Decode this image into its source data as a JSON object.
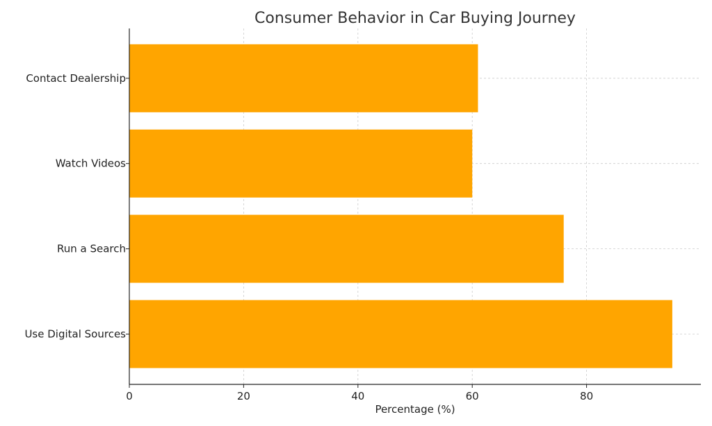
{
  "chart_data": {
    "type": "bar",
    "orientation": "horizontal",
    "title": "Consumer Behavior in Car Buying Journey",
    "xlabel": "Percentage (%)",
    "ylabel": "",
    "categories": [
      "Use Digital Sources",
      "Run a Search",
      "Watch Videos",
      "Contact Dealership"
    ],
    "values": [
      95,
      76,
      60,
      61
    ],
    "xlim": [
      0,
      100
    ],
    "xticks": [
      "0",
      "20",
      "40",
      "60",
      "80"
    ],
    "grid": true,
    "bar_color": "#FFA500"
  }
}
